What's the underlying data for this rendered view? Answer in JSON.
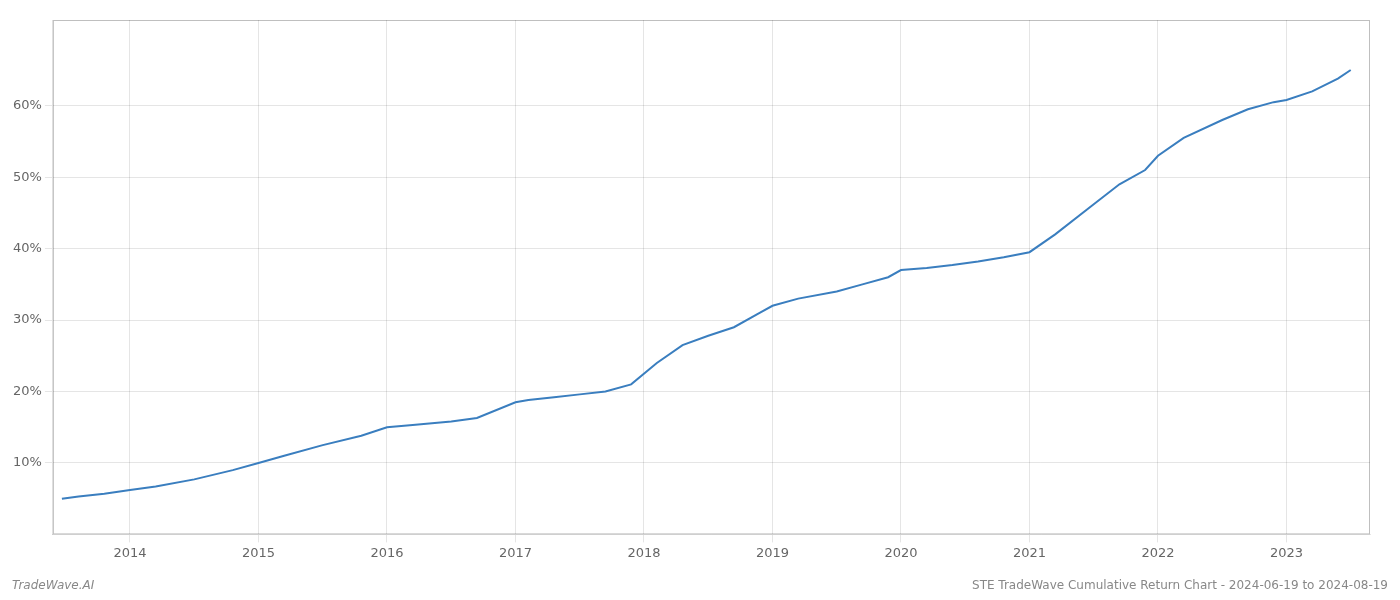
{
  "chart_data": {
    "type": "line",
    "title": "STE TradeWave Cumulative Return Chart - 2024-06-19 to 2024-08-19",
    "annotations": [
      "TradeWave.AI"
    ],
    "color": "#3a7ebf",
    "x": [
      2013.47,
      2013.6,
      2013.8,
      2014.0,
      2014.2,
      2014.5,
      2014.8,
      2015.0,
      2015.2,
      2015.5,
      2015.8,
      2016.0,
      2016.2,
      2016.5,
      2016.7,
      2017.0,
      2017.1,
      2017.3,
      2017.5,
      2017.7,
      2017.9,
      2018.1,
      2018.3,
      2018.5,
      2018.7,
      2018.9,
      2019.0,
      2019.2,
      2019.5,
      2019.7,
      2019.9,
      2020.0,
      2020.2,
      2020.4,
      2020.6,
      2020.8,
      2021.0,
      2021.2,
      2021.5,
      2021.7,
      2021.9,
      2022.0,
      2022.2,
      2022.5,
      2022.7,
      2022.9,
      2023.0,
      2023.2,
      2023.4,
      2023.5
    ],
    "values": [
      0.05,
      0.053,
      0.057,
      0.062,
      0.067,
      0.077,
      0.09,
      0.1,
      0.11,
      0.125,
      0.138,
      0.15,
      0.153,
      0.158,
      0.163,
      0.185,
      0.188,
      0.192,
      0.196,
      0.2,
      0.21,
      0.24,
      0.265,
      0.278,
      0.29,
      0.31,
      0.32,
      0.33,
      0.34,
      0.35,
      0.36,
      0.37,
      0.373,
      0.377,
      0.382,
      0.388,
      0.395,
      0.42,
      0.462,
      0.49,
      0.51,
      0.53,
      0.555,
      0.58,
      0.595,
      0.605,
      0.608,
      0.62,
      0.638,
      0.65
    ],
    "xlim": [
      2013.4,
      2023.65
    ],
    "ylim": [
      0.0,
      0.72
    ],
    "xticks": [
      2014,
      2015,
      2016,
      2017,
      2018,
      2019,
      2020,
      2021,
      2022,
      2023
    ],
    "yticks": [
      {
        "value": 0.1,
        "label": "10%"
      },
      {
        "value": 0.2,
        "label": "20%"
      },
      {
        "value": 0.3,
        "label": "30%"
      },
      {
        "value": 0.4,
        "label": "40%"
      },
      {
        "value": 0.5,
        "label": "50%"
      },
      {
        "value": 0.6,
        "label": "60%"
      }
    ],
    "grid": true
  }
}
